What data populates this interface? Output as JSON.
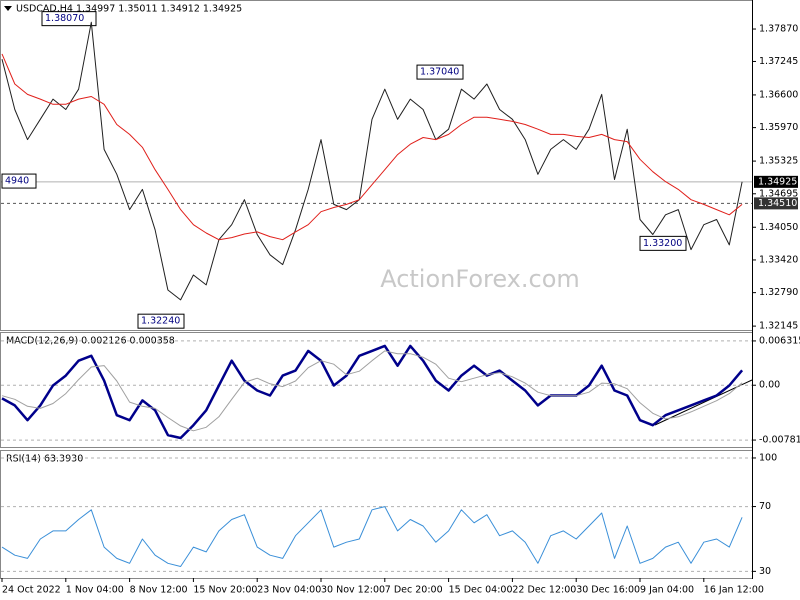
{
  "chart_data": [
    {
      "type": "line",
      "title": "USDCAD,H4  1.34997 1.35011 1.34912 1.34925",
      "watermark": "ActionForex.com",
      "ylim": [
        1.3207,
        1.3841
      ],
      "yticks": [
        {
          "value": 1.3787,
          "label": "1.37870"
        },
        {
          "value": 1.37245,
          "label": "1.37245"
        },
        {
          "value": 1.366,
          "label": "1.36600"
        },
        {
          "value": 1.3597,
          "label": "1.35970"
        },
        {
          "value": 1.35325,
          "label": "1.35325"
        },
        {
          "value": 1.34695,
          "label": "1.34695"
        },
        {
          "value": 1.3405,
          "label": "1.34050"
        },
        {
          "value": 1.3342,
          "label": "1.33420"
        },
        {
          "value": 1.3279,
          "label": "1.32790"
        },
        {
          "value": 1.32145,
          "label": "1.32145"
        }
      ],
      "grid": false,
      "series": [
        {
          "name": "Close",
          "color": "#202020",
          "values": [
            1.3729,
            1.3632,
            1.3574,
            1.3613,
            1.3652,
            1.3632,
            1.3671,
            1.38,
            1.3555,
            1.3507,
            1.3439,
            1.3478,
            1.34,
            1.3284,
            1.3265,
            1.3313,
            1.3294,
            1.3381,
            1.341,
            1.3458,
            1.3391,
            1.3352,
            1.3333,
            1.34,
            1.3478,
            1.3574,
            1.3449,
            1.3439,
            1.3458,
            1.3613,
            1.3671,
            1.3613,
            1.3652,
            1.3632,
            1.3574,
            1.3594,
            1.3671,
            1.3652,
            1.3681,
            1.3632,
            1.3613,
            1.3574,
            1.3507,
            1.3555,
            1.3574,
            1.3555,
            1.3594,
            1.3661,
            1.3497,
            1.3594,
            1.342,
            1.3391,
            1.3429,
            1.3439,
            1.3362,
            1.341,
            1.342,
            1.3371,
            1.34925
          ]
        },
        {
          "name": "SMA",
          "color": "#e0201b",
          "values": [
            1.3739,
            1.3681,
            1.3661,
            1.3652,
            1.3642,
            1.3642,
            1.3652,
            1.3657,
            1.3642,
            1.3603,
            1.3584,
            1.3559,
            1.3516,
            1.3478,
            1.3439,
            1.341,
            1.3394,
            1.3381,
            1.3385,
            1.3392,
            1.3396,
            1.3387,
            1.3381,
            1.3396,
            1.341,
            1.3435,
            1.3443,
            1.3449,
            1.3458,
            1.3487,
            1.3516,
            1.3545,
            1.3565,
            1.3578,
            1.3574,
            1.3584,
            1.3603,
            1.3617,
            1.3617,
            1.3613,
            1.3609,
            1.3603,
            1.3594,
            1.3584,
            1.3584,
            1.358,
            1.3578,
            1.3584,
            1.3574,
            1.357,
            1.3536,
            1.3512,
            1.3493,
            1.3478,
            1.3458,
            1.3449,
            1.3439,
            1.3429,
            1.3449
          ]
        }
      ],
      "price_lines": [
        {
          "value": 1.34925,
          "label": "1.34925"
        },
        {
          "value": 1.3451,
          "label": "1.34510"
        }
      ],
      "annotations": [
        {
          "value": 1.3807,
          "label": "1.38070"
        },
        {
          "value": 1.3704,
          "label": "1.37040"
        },
        {
          "value": 1.332,
          "label": "1.33200"
        },
        {
          "value": 1.3224,
          "label": "1.32240"
        },
        {
          "value": 1.3494,
          "label": "4940"
        }
      ]
    },
    {
      "type": "line",
      "title": "MACD(12,26,9) 0.002126 0.000358",
      "ylim": [
        -0.008807,
        0.007446
      ],
      "yticks": [
        0.006315,
        {
          "value": 0,
          "label": "0.00"
        },
        -0.007818
      ],
      "grid": true,
      "series": [
        {
          "name": "MACD",
          "color": "#00008b",
          "width": 2.5,
          "values": [
            -0.00188,
            -0.00287,
            -0.00499,
            -0.00287,
            -4e-05,
            0.00137,
            0.00349,
            0.0042,
            0.00066,
            -0.00428,
            -0.00499,
            -0.00216,
            -0.00358,
            -0.00711,
            -0.00753,
            -0.0057,
            -0.00358,
            -4e-05,
            0.00349,
            0.00066,
            -0.00075,
            -0.00146,
            0.00137,
            0.00208,
            0.0049,
            0.00349,
            -4e-05,
            0.00137,
            0.0042,
            0.0049,
            0.00561,
            0.00278,
            0.00561,
            0.00349,
            0.00066,
            -0.00075,
            0.00137,
            0.00278,
            0.00137,
            0.00208,
            0.00066,
            -0.00075,
            -0.00287,
            -0.00146,
            -0.00146,
            -0.00146,
            -4e-05,
            0.00278,
            -0.00075,
            -0.00146,
            -0.00499,
            -0.0057,
            -0.00428,
            -0.00358,
            -0.00287,
            -0.00216,
            -0.00146,
            -4e-05,
            0.002126
          ]
        },
        {
          "name": "Signal",
          "color": "#a0a0a0",
          "width": 1,
          "values": [
            -0.0015,
            -0.002,
            -0.003,
            -0.0033,
            -0.0026,
            -0.0012,
            0.0008,
            0.0026,
            0.0028,
            0.0006,
            -0.0024,
            -0.003,
            -0.0033,
            -0.0046,
            -0.0058,
            -0.0065,
            -0.006,
            -0.0045,
            -0.002,
            0.0004,
            0.001,
            0.0002,
            -0.0002,
            0.0006,
            0.0025,
            0.0035,
            0.003,
            0.0015,
            0.002,
            0.0035,
            0.0049,
            0.0045,
            0.0045,
            0.004,
            0.003,
            0.001,
            0.0005,
            0.001,
            0.0015,
            0.0018,
            0.0012,
            0.0003,
            -0.001,
            -0.0015,
            -0.0015,
            -0.0015,
            -0.001,
            0.0003,
            0.0002,
            -0.0005,
            -0.0025,
            -0.004,
            -0.0048,
            -0.0045,
            -0.0038,
            -0.003,
            -0.0022,
            -0.0012,
            0.000358
          ]
        }
      ]
    },
    {
      "type": "line",
      "title": "RSI(14) 63.3930",
      "ylim": [
        25.9,
        104.3
      ],
      "yticks": [
        100,
        70,
        30
      ],
      "grid": true,
      "categories": [
        "24 Oct 2022",
        null,
        null,
        null,
        null,
        "1 Nov 04:00",
        null,
        null,
        null,
        null,
        "8 Nov 12:00",
        null,
        null,
        null,
        null,
        "15 Nov 20:00",
        null,
        null,
        null,
        null,
        "23 Nov 04:00",
        null,
        null,
        null,
        null,
        "30 Nov 12:00",
        null,
        null,
        null,
        null,
        "7 Dec 20:00",
        null,
        null,
        null,
        null,
        "15 Dec 04:00",
        null,
        null,
        null,
        null,
        "22 Dec 12:00",
        null,
        null,
        null,
        null,
        "30 Dec 16:00",
        null,
        null,
        null,
        null,
        "9 Jan 04:00",
        null,
        null,
        null,
        null,
        "16 Jan 12:00",
        null,
        null,
        null
      ],
      "series": [
        {
          "name": "RSI",
          "color": "#3a8fd8",
          "width": 1,
          "values": [
            45,
            40,
            38,
            50,
            55,
            55,
            62,
            68,
            45,
            38,
            35,
            50,
            40,
            35,
            33,
            45,
            42,
            55,
            62,
            65,
            45,
            40,
            38,
            52,
            60,
            68,
            45,
            48,
            50,
            68,
            70,
            55,
            62,
            58,
            48,
            55,
            68,
            60,
            65,
            52,
            55,
            48,
            35,
            52,
            55,
            50,
            58,
            66,
            38,
            58,
            35,
            38,
            45,
            48,
            35,
            48,
            50,
            45,
            63.393
          ]
        }
      ]
    }
  ]
}
